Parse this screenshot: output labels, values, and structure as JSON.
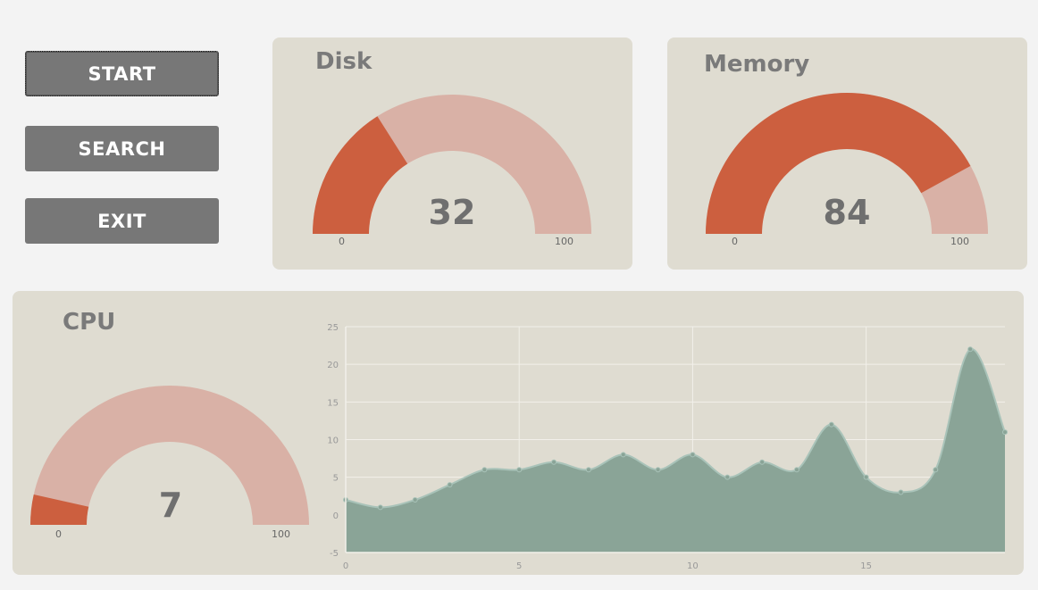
{
  "buttons": {
    "start": "START",
    "search": "SEARCH",
    "exit": "EXIT"
  },
  "disk": {
    "title": "Disk",
    "value": 32,
    "value_text": "32",
    "min": "0",
    "max": "100"
  },
  "memory": {
    "title": "Memory",
    "value": 84,
    "value_text": "84",
    "min": "0",
    "max": "100"
  },
  "cpu": {
    "title": "CPU",
    "value": 7,
    "value_text": "7",
    "min": "0",
    "max": "100"
  },
  "colors": {
    "gauge_fill": "#cc5f3f",
    "gauge_track": "#d9b1a6",
    "panel_bg": "#dfdcd1",
    "area_fill": "#8aa497",
    "area_line": "#a9c3b9",
    "button_bg": "#777777"
  },
  "chart_data": {
    "type": "area",
    "x": [
      0,
      1,
      2,
      3,
      4,
      5,
      6,
      7,
      8,
      9,
      10,
      11,
      12,
      13,
      14,
      15,
      16,
      17,
      18,
      19
    ],
    "values": [
      2,
      1,
      2,
      4,
      6,
      6,
      7,
      6,
      8,
      6,
      8,
      5,
      7,
      6,
      12,
      5,
      3,
      6,
      22,
      11
    ],
    "ylim": [
      -5,
      25
    ],
    "yticks": [
      -5,
      0,
      5,
      10,
      15,
      20,
      25
    ],
    "xticks": [
      0,
      5,
      10,
      15
    ],
    "xlim": [
      0,
      19
    ],
    "grid": true
  }
}
